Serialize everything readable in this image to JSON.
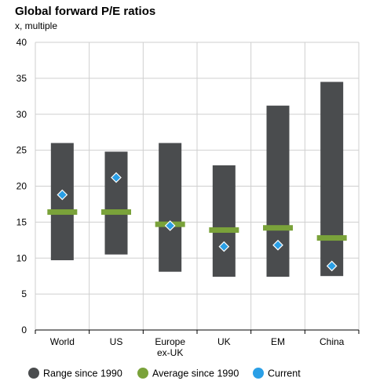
{
  "chart_data": {
    "type": "range",
    "title": "Global forward P/E ratios",
    "ylabel": "x, multiple",
    "xlabel": "",
    "ylim": [
      0,
      40
    ],
    "yticks": [
      0,
      5,
      10,
      15,
      20,
      25,
      30,
      35,
      40
    ],
    "grid": true,
    "legend_placement": "bottom",
    "categories": [
      "World",
      "US",
      "Europe ex-UK",
      "UK",
      "EM",
      "China"
    ],
    "category_labels": [
      [
        "World"
      ],
      [
        "US"
      ],
      [
        "Europe",
        "ex-UK"
      ],
      [
        "UK"
      ],
      [
        "EM"
      ],
      [
        "China"
      ]
    ],
    "series": [
      {
        "name": "Range since 1990",
        "color": "#4a4c4e",
        "low": [
          9.7,
          10.5,
          8.1,
          7.4,
          7.4,
          7.5
        ],
        "high": [
          26.0,
          24.8,
          26.0,
          22.9,
          31.2,
          34.5
        ]
      },
      {
        "name": "Average since 1990",
        "color": "#7aa23a",
        "values": [
          16.4,
          16.4,
          14.7,
          13.9,
          14.2,
          12.8
        ]
      },
      {
        "name": "Current",
        "color": "#2a9fe6",
        "values": [
          18.8,
          21.2,
          14.5,
          11.6,
          11.8,
          8.9
        ]
      }
    ]
  }
}
